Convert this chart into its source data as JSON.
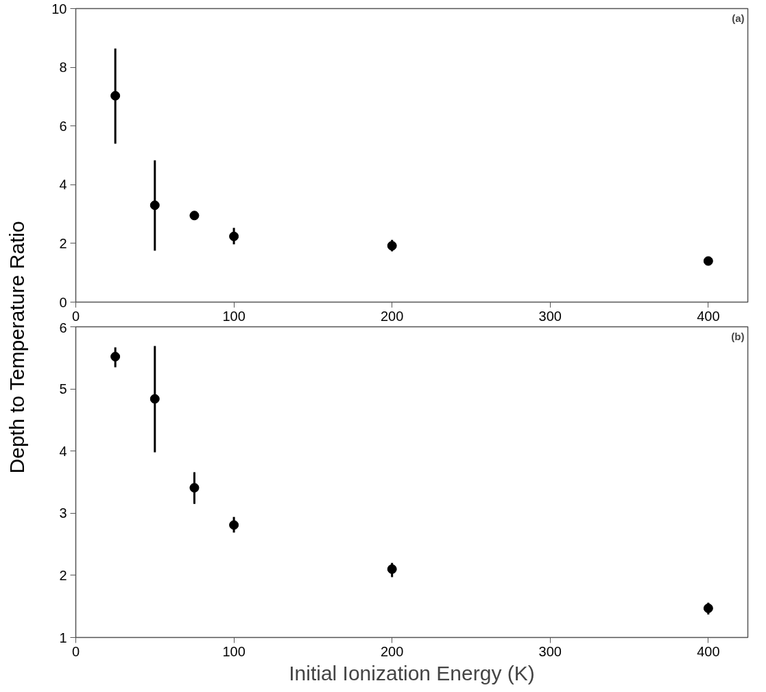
{
  "chart_data": [
    {
      "type": "scatter",
      "x": [
        25,
        50,
        75,
        100,
        200,
        400
      ],
      "ylabel": "Depth to Temperature Ratio",
      "annotations": [
        "(a)"
      ],
      "series": [
        {
          "color": "#000000",
          "values": [
            7.03,
            3.3,
            2.95,
            2.24,
            1.92,
            1.4
          ],
          "errors": [
            [
              5.4,
              8.64
            ],
            [
              1.75,
              4.83
            ],
            null,
            [
              1.97,
              2.53
            ],
            [
              1.73,
              2.12
            ],
            null
          ]
        }
      ],
      "xlim": [
        0,
        425
      ],
      "xticks": [
        0,
        100,
        200,
        300,
        400
      ],
      "ylim": [
        0,
        10
      ],
      "yticks": [
        0,
        2,
        4,
        6,
        8,
        10
      ],
      "marker": "circle",
      "grid": false
    },
    {
      "type": "scatter",
      "x": [
        25,
        50,
        75,
        100,
        200,
        400
      ],
      "xlabel": "Initial Ionization Energy (K)",
      "annotations": [
        "(b)"
      ],
      "series": [
        {
          "color": "#000000",
          "values": [
            5.52,
            4.84,
            3.41,
            2.81,
            2.1,
            1.47
          ],
          "errors": [
            [
              5.35,
              5.67
            ],
            [
              3.98,
              5.69
            ],
            [
              3.15,
              3.66
            ],
            [
              2.69,
              2.94
            ],
            [
              1.97,
              2.2
            ],
            [
              1.37,
              1.56
            ]
          ]
        }
      ],
      "xlim": [
        0,
        425
      ],
      "xticks": [
        0,
        100,
        200,
        300,
        400
      ],
      "ylim": [
        1,
        6
      ],
      "yticks": [
        1,
        2,
        3,
        4,
        5,
        6
      ],
      "marker": "circle",
      "grid": false
    }
  ]
}
